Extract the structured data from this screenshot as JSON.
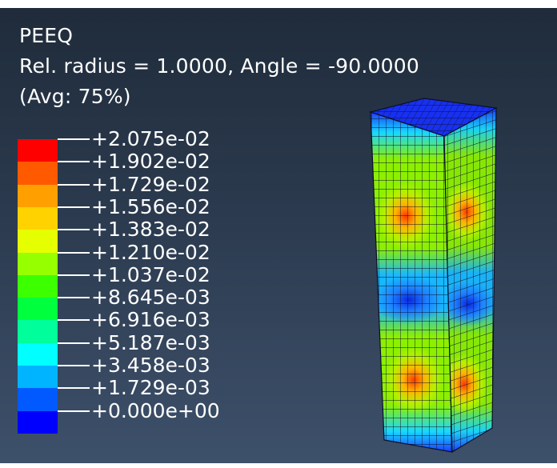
{
  "viewport": {
    "variable": "PEEQ",
    "section_info": "Rel. radius = 1.0000, Angle = -90.0000",
    "averaging": "(Avg: 75%)"
  },
  "legend": {
    "labels": [
      "+2.075e-02",
      "+1.902e-02",
      "+1.729e-02",
      "+1.556e-02",
      "+1.383e-02",
      "+1.210e-02",
      "+1.037e-02",
      "+8.645e-03",
      "+6.916e-03",
      "+5.187e-03",
      "+3.458e-03",
      "+1.729e-03",
      "+0.000e+00"
    ],
    "colors": [
      "#ff0000",
      "#ff5a00",
      "#ffa000",
      "#ffd200",
      "#e6ff00",
      "#96ff00",
      "#3cff00",
      "#00ff3c",
      "#00ff9b",
      "#00ffff",
      "#00b4ff",
      "#005aff",
      "#0000ff"
    ]
  }
}
